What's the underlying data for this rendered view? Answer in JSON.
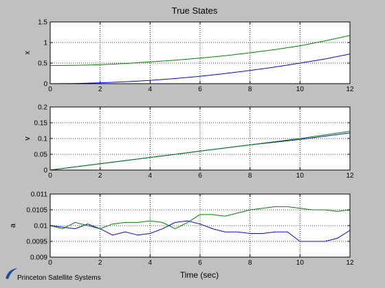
{
  "figure": {
    "title": "True States",
    "xlabel": "Time (sec)",
    "brand": "Princeton Satellite Systems"
  },
  "colors": {
    "background": "#c0c0c0",
    "axes": "#ffffff",
    "series1": "#0000ff",
    "series2": "#008000"
  },
  "chart_data": [
    {
      "type": "line",
      "ylabel": "x",
      "xlim": [
        0,
        12
      ],
      "ylim": [
        0,
        1.5
      ],
      "xticks": [
        "0",
        "2",
        "4",
        "6",
        "8",
        "10",
        "12"
      ],
      "yticks": [
        "0",
        "0.5",
        "1",
        "1.5"
      ],
      "grid": true,
      "series": [
        {
          "color": "#0000ff",
          "x": [
            0,
            1,
            2,
            3,
            4,
            5,
            6,
            7,
            8,
            9,
            10,
            11,
            12
          ],
          "y": [
            0,
            0.005,
            0.02,
            0.045,
            0.08,
            0.125,
            0.18,
            0.245,
            0.32,
            0.405,
            0.5,
            0.6,
            0.72
          ]
        },
        {
          "color": "#008000",
          "x": [
            0,
            1,
            2,
            3,
            4,
            5,
            6,
            7,
            8,
            9,
            10,
            11,
            12
          ],
          "y": [
            0.44,
            0.445,
            0.46,
            0.49,
            0.53,
            0.57,
            0.62,
            0.68,
            0.75,
            0.83,
            0.92,
            1.04,
            1.17
          ]
        }
      ]
    },
    {
      "type": "line",
      "ylabel": "v",
      "xlim": [
        0,
        12
      ],
      "ylim": [
        0,
        0.2
      ],
      "xticks": [
        "0",
        "2",
        "4",
        "6",
        "8",
        "10",
        "12"
      ],
      "yticks": [
        "0",
        "0.05",
        "0.1",
        "0.15",
        "0.2"
      ],
      "grid": true,
      "series": [
        {
          "color": "#0000ff",
          "x": [
            0,
            2,
            4,
            6,
            8,
            10,
            12
          ],
          "y": [
            0,
            0.02,
            0.04,
            0.06,
            0.08,
            0.097,
            0.118
          ]
        },
        {
          "color": "#008000",
          "x": [
            0,
            2,
            4,
            6,
            8,
            10,
            12
          ],
          "y": [
            0,
            0.02,
            0.04,
            0.06,
            0.08,
            0.1,
            0.123
          ]
        }
      ]
    },
    {
      "type": "line",
      "ylabel": "a",
      "xlim": [
        0,
        12
      ],
      "ylim": [
        0.009,
        0.011
      ],
      "xticks": [
        "0",
        "2",
        "4",
        "6",
        "8",
        "10",
        "12"
      ],
      "yticks": [
        "0.009",
        "0.0095",
        "0.01",
        "0.0105",
        "0.011"
      ],
      "grid": true,
      "series": [
        {
          "color": "#0000ff",
          "x": [
            0,
            0.5,
            1,
            1.5,
            2,
            2.5,
            3,
            3.5,
            4,
            4.5,
            5,
            5.5,
            6,
            6.5,
            7,
            7.5,
            8,
            8.5,
            9,
            9.5,
            10,
            10.5,
            11,
            11.5,
            12
          ],
          "y": [
            0.01,
            0.00995,
            0.0099,
            0.01005,
            0.0099,
            0.0097,
            0.0098,
            0.0097,
            0.00975,
            0.0099,
            0.0101,
            0.01015,
            0.01005,
            0.0099,
            0.0098,
            0.0098,
            0.00975,
            0.00975,
            0.0098,
            0.0098,
            0.0095,
            0.0095,
            0.0095,
            0.0096,
            0.00985
          ]
        },
        {
          "color": "#008000",
          "x": [
            0,
            0.5,
            1,
            1.5,
            2,
            2.5,
            3,
            3.5,
            4,
            4.5,
            5,
            5.5,
            6,
            6.5,
            7,
            7.5,
            8,
            8.5,
            9,
            9.5,
            10,
            10.5,
            11,
            11.5,
            12
          ],
          "y": [
            0.01,
            0.0099,
            0.0101,
            0.01,
            0.0099,
            0.01005,
            0.0101,
            0.0101,
            0.01015,
            0.0101,
            0.0099,
            0.0101,
            0.01035,
            0.01035,
            0.0103,
            0.0104,
            0.0105,
            0.01055,
            0.0106,
            0.0106,
            0.01055,
            0.0105,
            0.0105,
            0.01045,
            0.0105
          ]
        }
      ]
    }
  ]
}
